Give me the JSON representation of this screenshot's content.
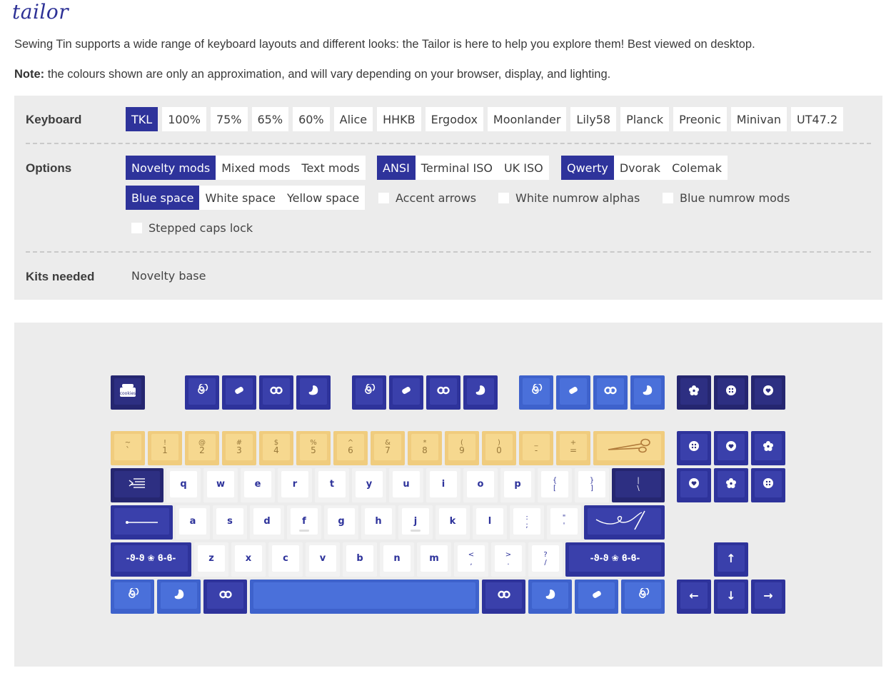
{
  "logo": "tailor",
  "intro": "Sewing Tin supports a wide range of keyboard layouts and different looks: the Tailor is here to help you explore them! Best viewed on desktop.",
  "note_label": "Note:",
  "note_text": " the colours shown are only an approximation, and will vary depending on your browser, display, and lighting.",
  "keyboard": {
    "label": "Keyboard",
    "options": [
      "TKL",
      "100%",
      "75%",
      "65%",
      "60%",
      "Alice",
      "HHKB",
      "Ergodox",
      "Moonlander",
      "Lily58",
      "Planck",
      "Preonic",
      "Minivan",
      "UT47.2"
    ],
    "selected": "TKL"
  },
  "options": {
    "label": "Options",
    "mods": [
      "Novelty mods",
      "Mixed mods",
      "Text mods"
    ],
    "mods_selected": "Novelty mods",
    "iso": [
      "ANSI",
      "Terminal ISO",
      "UK ISO"
    ],
    "iso_selected": "ANSI",
    "layout": [
      "Qwerty",
      "Dvorak",
      "Colemak"
    ],
    "layout_selected": "Qwerty",
    "space": [
      "Blue space",
      "White space",
      "Yellow space"
    ],
    "space_selected": "Blue space",
    "checkboxes": [
      "Accent arrows",
      "White numrow alphas",
      "Blue numrow mods",
      "Stepped caps lock"
    ]
  },
  "kits": {
    "label": "Kits needed",
    "value": "Novelty base"
  },
  "colors": {
    "accent": "#2e339b",
    "blue": "#3e62cc",
    "yellow": "#f0cc7e",
    "dark": "#252670",
    "white": "#f2f2f2"
  },
  "keys": {
    "esc_text": "cookies",
    "numrow_top": [
      "~",
      "!",
      "@",
      "#",
      "$",
      "%",
      "^",
      "&",
      "*",
      "(",
      ")",
      "_",
      "+"
    ],
    "numrow_bottom": [
      "`",
      "1",
      "2",
      "3",
      "4",
      "5",
      "6",
      "7",
      "8",
      "9",
      "0",
      "-",
      "="
    ],
    "row_q": [
      "q",
      "w",
      "e",
      "r",
      "t",
      "y",
      "u",
      "i",
      "o",
      "p"
    ],
    "bracket_l": [
      "{",
      "["
    ],
    "bracket_r": [
      "}",
      "]"
    ],
    "pipe": [
      "|",
      "\\"
    ],
    "row_a": [
      "a",
      "s",
      "d",
      "f",
      "g",
      "h",
      "j",
      "k",
      "l"
    ],
    "semi": [
      ":",
      ";"
    ],
    "quote": [
      "\"",
      "'"
    ],
    "row_z": [
      "z",
      "x",
      "c",
      "v",
      "b",
      "n",
      "m"
    ],
    "comma": [
      "<",
      ","
    ],
    "period": [
      ">",
      "."
    ],
    "slash": [
      "?",
      "/"
    ],
    "shift_legend": "-ϑ-ϑ ❀ ϐ-ϐ-",
    "arrow_up": "↑",
    "arrow_left": "←",
    "arrow_down": "↓",
    "arrow_right": "→"
  }
}
